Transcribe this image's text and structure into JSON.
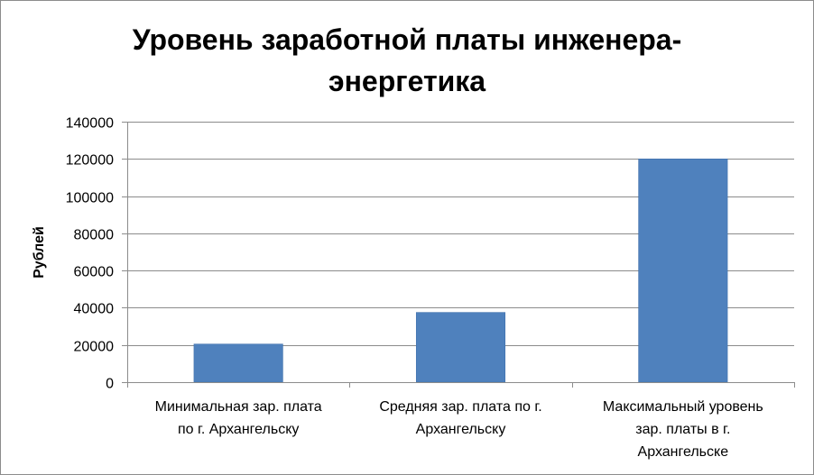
{
  "chart_data": {
    "type": "bar",
    "title": "Уровень заработной платы инженера-энергетика",
    "title_lines": [
      "Уровень заработной платы инженера-",
      "энергетика"
    ],
    "ylabel": "Рублей",
    "xlabel": "",
    "categories": [
      [
        "Минимальная зар. плата",
        "по г. Архангельску"
      ],
      [
        "Средняя зар. плата по г.",
        "Архангельску"
      ],
      [
        "Максимальный уровень",
        "зар. платы в г.",
        "Архангельске"
      ]
    ],
    "values": [
      20500,
      37500,
      120000
    ],
    "ylim": [
      0,
      140000
    ],
    "yticks": [
      0,
      20000,
      40000,
      60000,
      80000,
      100000,
      120000,
      140000
    ],
    "grid": true,
    "legend": "none",
    "colors": {
      "bar": "#4F81BD",
      "bar_edge": "#3A6BA8",
      "grid": "#8c8c8c",
      "axis": "#8c8c8c"
    }
  }
}
